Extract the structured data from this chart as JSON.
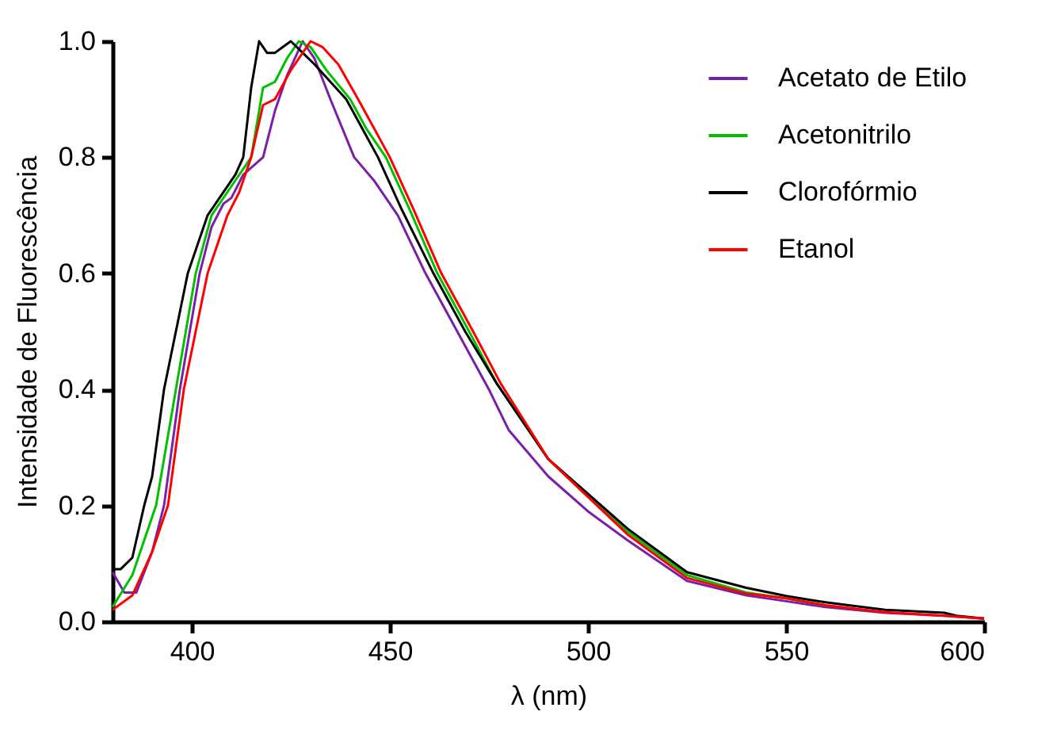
{
  "chart_data": {
    "type": "line",
    "xlabel": "λ (nm)",
    "ylabel": "Intensidade de Fluorescência",
    "xlim": [
      380,
      600
    ],
    "xticks": [
      400,
      450,
      500,
      550,
      600
    ],
    "ylim": [
      0,
      1.0
    ],
    "yticks": [
      {
        "value": 0,
        "label": "0.0"
      },
      0.2,
      0.4,
      0.6,
      0.8,
      {
        "value": 1,
        "label": "1.0"
      }
    ],
    "legend": "top right",
    "grid": false,
    "marker": "none",
    "line_style": "solid",
    "series": [
      {
        "name": "Acetato de Etilo",
        "color": "#7a1fa8",
        "x": [
          380,
          383,
          386,
          390,
          393,
          397,
          402,
          405,
          408,
          410,
          413,
          418,
          421,
          424,
          428,
          431,
          435,
          441,
          446,
          452,
          459,
          467,
          475,
          480,
          490,
          500,
          510,
          525,
          540,
          550,
          560,
          575,
          590,
          600
        ],
        "values": [
          0.085,
          0.05,
          0.05,
          0.12,
          0.2,
          0.4,
          0.6,
          0.68,
          0.72,
          0.73,
          0.77,
          0.8,
          0.88,
          0.94,
          1.0,
          0.97,
          0.9,
          0.8,
          0.76,
          0.7,
          0.6,
          0.5,
          0.4,
          0.33,
          0.25,
          0.19,
          0.14,
          0.07,
          0.045,
          0.035,
          0.025,
          0.015,
          0.01,
          0.005
        ]
      },
      {
        "name": "Acetonitrilo",
        "color": "#00c000",
        "x": [
          380,
          385,
          391,
          396,
          401,
          405,
          410,
          415,
          418,
          421,
          424,
          427,
          430,
          434,
          440,
          444,
          449,
          455,
          462,
          470,
          477,
          490,
          500,
          510,
          525,
          540,
          550,
          560
        ],
        "values": [
          0.025,
          0.08,
          0.2,
          0.4,
          0.6,
          0.7,
          0.75,
          0.8,
          0.92,
          0.93,
          0.97,
          1.0,
          0.99,
          0.95,
          0.9,
          0.85,
          0.8,
          0.71,
          0.6,
          0.5,
          0.41,
          0.28,
          0.215,
          0.155,
          0.08,
          0.05,
          0.04,
          0.028
        ]
      },
      {
        "name": "Clorofórmio",
        "color": "#000000",
        "x": [
          380,
          382,
          385,
          388,
          390,
          393,
          396,
          399,
          404,
          408,
          411,
          413,
          415,
          417,
          419,
          421,
          423,
          425,
          428,
          431,
          435,
          439,
          443,
          447,
          453,
          461,
          469,
          477,
          490,
          500,
          510,
          525,
          540,
          550,
          560,
          575,
          590,
          593,
          600
        ],
        "values": [
          0.09,
          0.09,
          0.11,
          0.2,
          0.25,
          0.4,
          0.5,
          0.6,
          0.7,
          0.74,
          0.77,
          0.8,
          0.92,
          1.0,
          0.98,
          0.98,
          0.99,
          1.0,
          0.98,
          0.96,
          0.93,
          0.9,
          0.85,
          0.8,
          0.71,
          0.6,
          0.5,
          0.41,
          0.28,
          0.22,
          0.16,
          0.085,
          0.058,
          0.044,
          0.033,
          0.02,
          0.015,
          0.01,
          0.005
        ]
      },
      {
        "name": "Etanol",
        "color": "#ff0000",
        "x": [
          380,
          385,
          390,
          394,
          398,
          404,
          409,
          412,
          415,
          418,
          421,
          425,
          430,
          433,
          437,
          442,
          446,
          450,
          456,
          463,
          471,
          478,
          490,
          500,
          510,
          525,
          540,
          550,
          560,
          575,
          590,
          600
        ],
        "values": [
          0.02,
          0.045,
          0.12,
          0.2,
          0.4,
          0.6,
          0.7,
          0.74,
          0.8,
          0.89,
          0.9,
          0.95,
          1.0,
          0.99,
          0.96,
          0.9,
          0.85,
          0.8,
          0.71,
          0.6,
          0.5,
          0.41,
          0.28,
          0.215,
          0.15,
          0.075,
          0.048,
          0.04,
          0.028,
          0.016,
          0.01,
          0.005
        ]
      }
    ]
  }
}
